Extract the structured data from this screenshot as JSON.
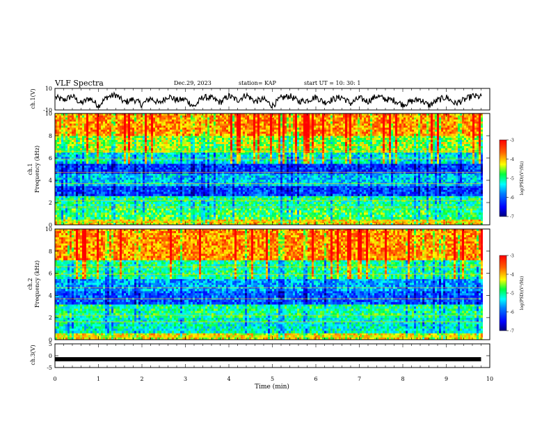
{
  "header": {
    "title": "VLF Spectra",
    "date": "Dec.29, 2023",
    "station": "station= KAP",
    "start": "start  UT =   10: 30: 1"
  },
  "chart_data": [
    {
      "id": "ch1-waveform",
      "type": "line",
      "ylabel": "ch.1(V)",
      "ylim": [
        -10,
        10
      ],
      "yticks": [
        "10",
        "-10"
      ],
      "xlim": [
        0,
        10
      ],
      "x": [
        0,
        0.2,
        0.4,
        0.6,
        0.8,
        1.0,
        1.2,
        1.4,
        1.6,
        1.8,
        2.0,
        2.2,
        2.4,
        2.6,
        2.8,
        3.0,
        3.2,
        3.4,
        3.6,
        3.8,
        4.0,
        4.2,
        4.4,
        4.6,
        4.8,
        5.0,
        5.2,
        5.4,
        5.6,
        5.8,
        6.0,
        6.2,
        6.4,
        6.6,
        6.8,
        7.0,
        7.2,
        7.4,
        7.6,
        7.8,
        8.0,
        8.2,
        8.4,
        8.6,
        8.8,
        9.0,
        9.2,
        9.4,
        9.6,
        9.8
      ],
      "values": [
        2,
        -1,
        3,
        -4,
        1,
        -6,
        2,
        4,
        -3,
        0,
        -5,
        1,
        -4,
        3,
        -1,
        0,
        -7,
        2,
        1,
        -3,
        3,
        -1,
        4,
        -2,
        0,
        -6,
        1,
        3,
        -2,
        -1,
        2,
        -3,
        0,
        2,
        -4,
        1,
        -2,
        3,
        0,
        -1,
        -5,
        -2,
        0,
        -6,
        -1,
        2,
        -4,
        -1,
        3,
        2
      ]
    },
    {
      "id": "ch1-spectrogram",
      "type": "heatmap",
      "ylabel": "ch.1\nFrequency (kHz)",
      "ylim": [
        0,
        10
      ],
      "yticks": [
        "0",
        "2",
        "4",
        "6",
        "8",
        "10"
      ],
      "xlim": [
        0,
        10
      ],
      "colorbar": {
        "label": "log(PSD)(V²/Hz)",
        "range": [
          -7,
          -3
        ],
        "ticks": [
          "-3",
          "-4",
          "-5",
          "-6",
          "-7"
        ]
      },
      "frequency_bands_khz": [
        {
          "from": 0,
          "to": 0.5,
          "level": 0.72
        },
        {
          "from": 0.5,
          "to": 1.5,
          "level": 0.55
        },
        {
          "from": 1.5,
          "to": 2.6,
          "level": 0.5
        },
        {
          "from": 2.6,
          "to": 3.5,
          "level": 0.22
        },
        {
          "from": 3.5,
          "to": 4.6,
          "level": 0.38
        },
        {
          "from": 4.6,
          "to": 5.5,
          "level": 0.2
        },
        {
          "from": 5.5,
          "to": 6.5,
          "level": 0.42
        },
        {
          "from": 6.5,
          "to": 8.0,
          "level": 0.62
        },
        {
          "from": 8.0,
          "to": 10,
          "level": 0.8
        }
      ]
    },
    {
      "id": "ch2-spectrogram",
      "type": "heatmap",
      "ylabel": "ch.2\nFrequency (kHz)",
      "ylim": [
        0,
        10
      ],
      "yticks": [
        "0",
        "2",
        "4",
        "6",
        "8",
        "10"
      ],
      "xlim": [
        0,
        10
      ],
      "colorbar": {
        "label": "log(PSD)(V²/Hz)",
        "range": [
          -7,
          -3
        ],
        "ticks": [
          "-3",
          "-4",
          "-5",
          "-6",
          "-7"
        ]
      },
      "frequency_bands_khz": [
        {
          "from": 0,
          "to": 0.6,
          "level": 0.7
        },
        {
          "from": 0.6,
          "to": 2.0,
          "level": 0.45
        },
        {
          "from": 2.0,
          "to": 3.2,
          "level": 0.5
        },
        {
          "from": 3.2,
          "to": 4.4,
          "level": 0.25
        },
        {
          "from": 4.4,
          "to": 5.5,
          "level": 0.33
        },
        {
          "from": 5.5,
          "to": 7.2,
          "level": 0.5
        },
        {
          "from": 7.2,
          "to": 10,
          "level": 0.8
        }
      ]
    },
    {
      "id": "ch3-waveform",
      "type": "line",
      "ylabel": "ch.3(V)",
      "ylim": [
        -5,
        5
      ],
      "yticks": [
        "5",
        "0",
        "-5"
      ],
      "xlim": [
        0,
        10
      ],
      "x": [
        0,
        9.8
      ],
      "values": [
        -1.5,
        -1.5
      ],
      "xlabel": "Time (min)",
      "xticks": [
        "0",
        "1",
        "2",
        "3",
        "4",
        "5",
        "6",
        "7",
        "8",
        "9",
        "10"
      ]
    }
  ],
  "colors": {
    "colormap": [
      "#000080",
      "#0000ff",
      "#0080ff",
      "#00ffff",
      "#00ff80",
      "#80ff00",
      "#ffff00",
      "#ff8000",
      "#ff0000",
      "#c00000"
    ],
    "line": "#000000"
  }
}
